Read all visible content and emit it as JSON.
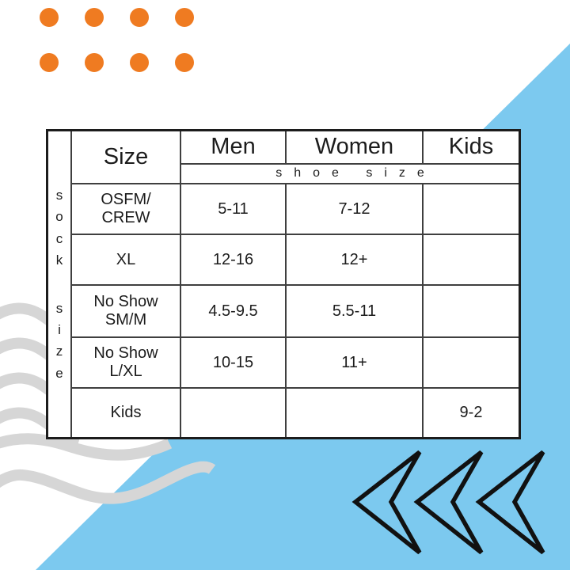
{
  "chart_data": {
    "type": "table",
    "columns": [
      "Size",
      "Men",
      "Women",
      "Kids"
    ],
    "subheader": "shoe size",
    "side_label": "sock size",
    "rows": [
      [
        "OSFM/CREW",
        "5-11",
        "7-12",
        ""
      ],
      [
        "XL",
        "12-16",
        "12+",
        ""
      ],
      [
        "No Show SM/M",
        "4.5-9.5",
        "5.5-11",
        ""
      ],
      [
        "No Show L/XL",
        "10-15",
        "11+",
        ""
      ],
      [
        "Kids",
        "",
        "",
        "9-2"
      ]
    ]
  },
  "ui": {
    "side_label": {
      "word1": "sock",
      "word2": "size"
    },
    "row_labels": [
      {
        "line1": "OSFM/",
        "line2": "CREW"
      },
      {
        "line1": "XL",
        "line2": ""
      },
      {
        "line1": "No Show",
        "line2": "SM/M"
      },
      {
        "line1": "No Show",
        "line2": "L/XL"
      },
      {
        "line1": "Kids",
        "line2": ""
      }
    ]
  },
  "decor": {
    "accent_orange": "#EF7B21",
    "accent_blue": "#7CC9EF",
    "wave_gray": "#D6D6D6",
    "grid_line": "#3F3F3F",
    "dot_grid": {
      "rows": 2,
      "cols": 4
    }
  }
}
